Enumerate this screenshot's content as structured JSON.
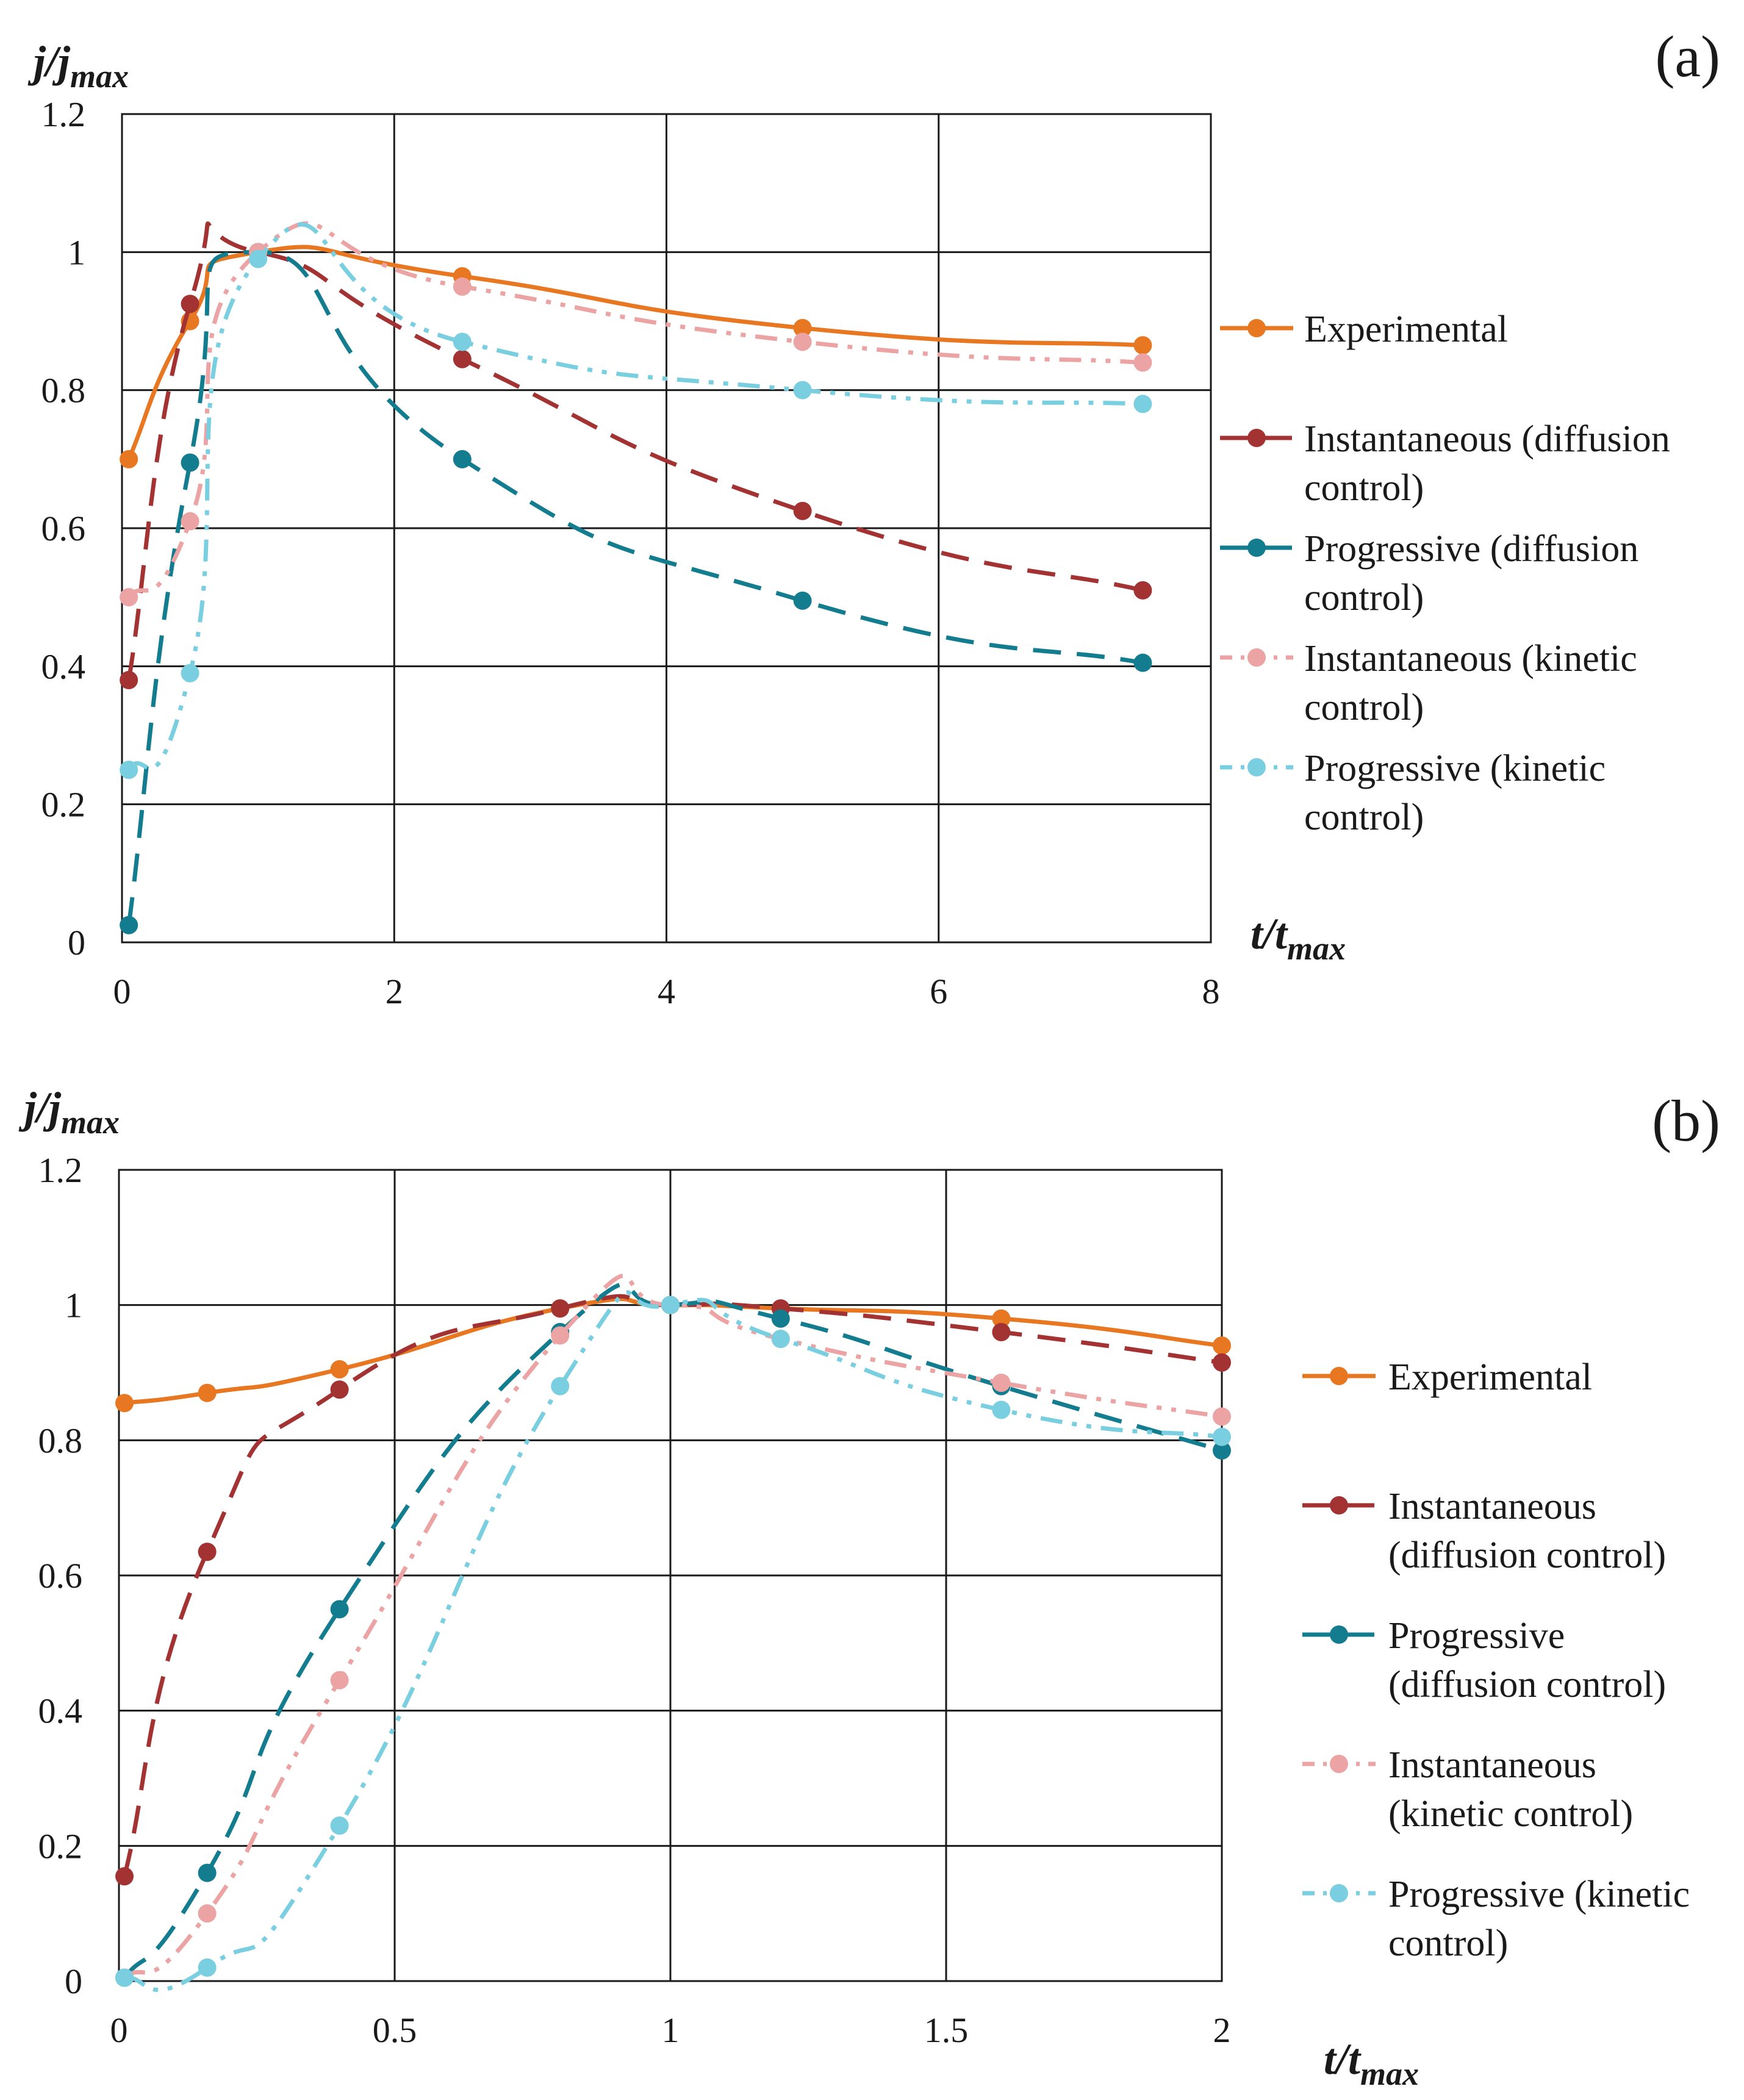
{
  "chart_data": [
    {
      "type": "line",
      "panel_label": "(a)",
      "ylabel": {
        "main": "j/j",
        "sub": "max"
      },
      "xlabel": {
        "main": "t/t",
        "sub": "max"
      },
      "xlim": [
        0,
        8
      ],
      "ylim": [
        0,
        1.2
      ],
      "xticks": [
        "0",
        "2",
        "4",
        "6",
        "8"
      ],
      "yticks": [
        "0",
        "0.2",
        "0.4",
        "0.6",
        "0.8",
        "1",
        "1.2"
      ],
      "grid": true,
      "legend_position": "right",
      "series": [
        {
          "name": "Experimental",
          "legend": [
            "Experimental"
          ],
          "color": "#e87722",
          "dash": "solid",
          "points": [
            [
              0.05,
              0.7
            ],
            [
              0.5,
              0.9
            ],
            [
              1.0,
              1.0
            ],
            [
              2.5,
              0.965
            ],
            [
              5.0,
              0.89
            ],
            [
              7.5,
              0.865
            ]
          ]
        },
        {
          "name": "Instantaneous (diffusion control)",
          "legend": [
            "Instantaneous (diffusion",
            "control)"
          ],
          "color": "#a33232",
          "dash": "long",
          "points": [
            [
              0.05,
              0.38
            ],
            [
              0.5,
              0.925
            ],
            [
              1.0,
              1.0
            ],
            [
              2.5,
              0.845
            ],
            [
              5.0,
              0.625
            ],
            [
              7.5,
              0.51
            ]
          ]
        },
        {
          "name": "Progressive (diffusion control)",
          "legend": [
            "Progressive (diffusion",
            "control)"
          ],
          "color": "#137d8f",
          "dash": "long",
          "points": [
            [
              0.05,
              0.025
            ],
            [
              0.5,
              0.695
            ],
            [
              1.0,
              1.0
            ],
            [
              2.5,
              0.7
            ],
            [
              5.0,
              0.495
            ],
            [
              7.5,
              0.405
            ]
          ]
        },
        {
          "name": "Instantaneous (kinetic control)",
          "legend": [
            "Instantaneous (kinetic",
            "control)"
          ],
          "color": "#eba3a3",
          "dash": "dashdotdot",
          "points": [
            [
              0.05,
              0.5
            ],
            [
              0.5,
              0.61
            ],
            [
              1.0,
              1.0
            ],
            [
              2.5,
              0.95
            ],
            [
              5.0,
              0.87
            ],
            [
              7.5,
              0.84
            ]
          ]
        },
        {
          "name": "Progressive (kinetic control)",
          "legend": [
            "Progressive (kinetic",
            "control)"
          ],
          "color": "#79cfe0",
          "dash": "dashdotdot",
          "points": [
            [
              0.05,
              0.25
            ],
            [
              0.5,
              0.39
            ],
            [
              1.0,
              0.99
            ],
            [
              2.5,
              0.87
            ],
            [
              5.0,
              0.8
            ],
            [
              7.5,
              0.78
            ]
          ]
        }
      ]
    },
    {
      "type": "line",
      "panel_label": "(b)",
      "ylabel": {
        "main": "j/j",
        "sub": "max"
      },
      "xlabel": {
        "main": "t/t",
        "sub": "max"
      },
      "xlim": [
        0,
        2
      ],
      "ylim": [
        0,
        1.2
      ],
      "xticks": [
        "0",
        "0.5",
        "1",
        "1.5",
        "2"
      ],
      "yticks": [
        "0",
        "0.2",
        "0.4",
        "0.6",
        "0.8",
        "1",
        "1.2"
      ],
      "grid": true,
      "legend_position": "right",
      "series": [
        {
          "name": "Experimental",
          "legend": [
            "Experimental"
          ],
          "color": "#e87722",
          "dash": "solid",
          "points": [
            [
              0.01,
              0.855
            ],
            [
              0.16,
              0.87
            ],
            [
              0.4,
              0.905
            ],
            [
              0.8,
              0.995
            ],
            [
              1.0,
              1.0
            ],
            [
              1.2,
              0.995
            ],
            [
              1.6,
              0.98
            ],
            [
              2.0,
              0.94
            ]
          ]
        },
        {
          "name": "Instantaneous (diffusion control)",
          "legend": [
            "Instantaneous",
            "(diffusion control)"
          ],
          "color": "#a33232",
          "dash": "long",
          "points": [
            [
              0.01,
              0.155
            ],
            [
              0.16,
              0.635
            ],
            [
              0.4,
              0.875
            ],
            [
              0.8,
              0.995
            ],
            [
              1.0,
              1.0
            ],
            [
              1.2,
              0.995
            ],
            [
              1.6,
              0.96
            ],
            [
              2.0,
              0.915
            ]
          ]
        },
        {
          "name": "Progressive (diffusion control)",
          "legend": [
            "Progressive",
            "(diffusion control)"
          ],
          "color": "#137d8f",
          "dash": "long",
          "points": [
            [
              0.01,
              0.005
            ],
            [
              0.16,
              0.16
            ],
            [
              0.4,
              0.55
            ],
            [
              0.8,
              0.96
            ],
            [
              1.0,
              1.0
            ],
            [
              1.2,
              0.98
            ],
            [
              1.6,
              0.88
            ],
            [
              2.0,
              0.785
            ]
          ]
        },
        {
          "name": "Instantaneous (kinetic control)",
          "legend": [
            "Instantaneous",
            "(kinetic control)"
          ],
          "color": "#eba3a3",
          "dash": "dashdotdot",
          "points": [
            [
              0.01,
              0.005
            ],
            [
              0.16,
              0.1
            ],
            [
              0.4,
              0.445
            ],
            [
              0.8,
              0.955
            ],
            [
              1.0,
              1.0
            ],
            [
              1.2,
              0.95
            ],
            [
              1.6,
              0.885
            ],
            [
              2.0,
              0.835
            ]
          ]
        },
        {
          "name": "Progressive (kinetic control)",
          "legend": [
            "Progressive (kinetic",
            "control)"
          ],
          "color": "#79cfe0",
          "dash": "dashdotdot",
          "points": [
            [
              0.01,
              0.005
            ],
            [
              0.16,
              0.02
            ],
            [
              0.4,
              0.23
            ],
            [
              0.8,
              0.88
            ],
            [
              1.0,
              1.0
            ],
            [
              1.2,
              0.95
            ],
            [
              1.6,
              0.845
            ],
            [
              2.0,
              0.805
            ]
          ]
        }
      ]
    }
  ]
}
